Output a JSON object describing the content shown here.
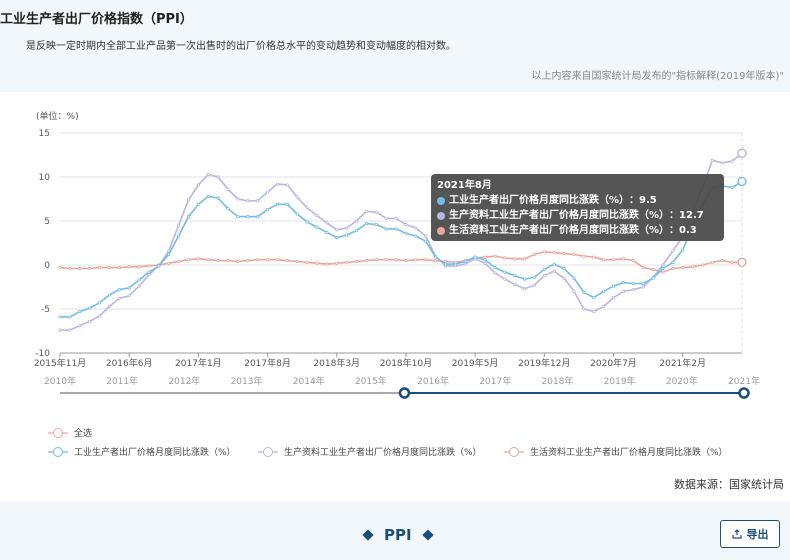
{
  "header": {
    "title": "工业生产者出厂价格指数（PPI）",
    "description": "是反映一定时期内全部工业产品第一次出售时的出厂价格总水平的变动趋势和变动幅度的相对数。",
    "note": "以上内容来自国家统计局发布的\"指标解释(2019年版本)\""
  },
  "source_label": "数据来源：国家统计局",
  "footer": {
    "ppi_label": "PPI",
    "export_label": "导出",
    "export_icon": "export-icon"
  },
  "tooltip": {
    "title": "2021年8月",
    "rows": [
      {
        "label": "工业生产者出厂价格月度同比涨跌（%）",
        "value": "9.5",
        "color": "#72bde6"
      },
      {
        "label": "生产资料工业生产者出厂价格月度同比涨跌（%）",
        "value": "12.7",
        "color": "#b8b6e3"
      },
      {
        "label": "生活资料工业生产者出厂价格月度同比涨跌（%）",
        "value": "0.3",
        "color": "#e6a79f"
      }
    ]
  },
  "legend": {
    "select_all": "全选",
    "items": [
      "工业生产者出厂价格月度同比涨跌（%）",
      "生产资料工业生产者出厂价格月度同比涨跌（%）",
      "生活资料工业生产者出厂价格月度同比涨跌（%）"
    ]
  },
  "chart_data": {
    "type": "line",
    "unit_label": "(单位：%)",
    "ylim": [
      -10,
      15
    ],
    "yticks": [
      -10,
      -5,
      0,
      5,
      10,
      15
    ],
    "grid": true,
    "legend_position": "bottom-left",
    "x_start": "2015-11",
    "x_end": "2021-08",
    "x_tick_labels": [
      "2015年11月",
      "2016年6月",
      "2017年1月",
      "2017年8月",
      "2018年3月",
      "2018年10月",
      "2019年5月",
      "2019年12月",
      "2020年7月",
      "2021年2月"
    ],
    "highlight_x": "2021年8月",
    "zoom_range": [
      "2015-11",
      "2021-08"
    ],
    "timeline_labels": [
      "2010年",
      "2011年",
      "2012年",
      "2013年",
      "2014年",
      "2015年",
      "2016年",
      "2017年",
      "2018年",
      "2019年",
      "2020年",
      "2021年"
    ],
    "series": [
      {
        "name": "工业生产者出厂价格月度同比涨跌（%）",
        "color": "#72bde6",
        "values": [
          -5.9,
          -5.9,
          -5.3,
          -4.9,
          -4.3,
          -3.4,
          -2.8,
          -2.6,
          -1.7,
          -0.8,
          -0.1,
          1.2,
          3.3,
          5.5,
          6.9,
          7.8,
          7.6,
          6.4,
          5.5,
          5.5,
          5.5,
          6.3,
          6.9,
          6.9,
          5.8,
          4.9,
          4.3,
          3.7,
          3.1,
          3.4,
          3.9,
          4.7,
          4.6,
          4.1,
          4.1,
          3.6,
          3.3,
          2.7,
          0.9,
          0.1,
          0.1,
          0.4,
          0.9,
          0.6,
          -0.3,
          -0.8,
          -1.2,
          -1.6,
          -1.4,
          -0.5,
          0.1,
          -0.4,
          -1.5,
          -3.1,
          -3.7,
          -3.0,
          -2.4,
          -2.0,
          -2.1,
          -2.1,
          -1.5,
          -0.4,
          0.3,
          1.7,
          4.4,
          6.8,
          8.8,
          9.0,
          8.8,
          9.5
        ],
        "tooltip_value": "9.5"
      },
      {
        "name": "生产资料工业生产者出厂价格月度同比涨跌（%）",
        "color": "#b8b6e3",
        "values": [
          -7.4,
          -7.4,
          -6.9,
          -6.4,
          -5.8,
          -4.7,
          -3.8,
          -3.5,
          -2.4,
          -1.1,
          -0.1,
          1.6,
          4.5,
          7.4,
          9.1,
          10.3,
          10.0,
          8.6,
          7.5,
          7.3,
          7.3,
          8.3,
          9.2,
          9.1,
          7.7,
          6.5,
          5.6,
          4.8,
          4.0,
          4.2,
          5.0,
          6.1,
          6.0,
          5.3,
          5.3,
          4.6,
          4.2,
          3.3,
          1.0,
          -0.1,
          -0.1,
          0.1,
          0.7,
          0.2,
          -0.9,
          -1.6,
          -2.2,
          -2.7,
          -2.3,
          -1.2,
          -0.7,
          -1.5,
          -3.0,
          -5.0,
          -5.3,
          -4.7,
          -3.7,
          -3.0,
          -2.8,
          -2.5,
          -1.4,
          0.0,
          1.6,
          3.2,
          6.0,
          8.8,
          11.9,
          11.6,
          11.8,
          12.7
        ],
        "tooltip_value": "12.7"
      },
      {
        "name": "生活资料工业生产者出厂价格月度同比涨跌（%）",
        "color": "#e6a79f",
        "values": [
          -0.3,
          -0.4,
          -0.4,
          -0.4,
          -0.3,
          -0.3,
          -0.3,
          -0.2,
          -0.2,
          -0.1,
          0.0,
          0.2,
          0.4,
          0.6,
          0.7,
          0.6,
          0.5,
          0.5,
          0.4,
          0.5,
          0.6,
          0.6,
          0.6,
          0.5,
          0.4,
          0.3,
          0.2,
          0.1,
          0.2,
          0.3,
          0.4,
          0.5,
          0.6,
          0.6,
          0.6,
          0.5,
          0.6,
          0.6,
          0.5,
          0.4,
          0.3,
          0.5,
          0.8,
          0.9,
          1.0,
          0.8,
          0.7,
          0.7,
          1.2,
          1.5,
          1.4,
          1.3,
          1.2,
          1.0,
          0.9,
          0.6,
          0.6,
          0.7,
          0.5,
          -0.3,
          -0.5,
          -0.8,
          -0.4,
          -0.3,
          -0.2,
          0.0,
          0.3,
          0.5,
          0.3,
          0.3
        ],
        "tooltip_value": "0.3"
      }
    ]
  }
}
